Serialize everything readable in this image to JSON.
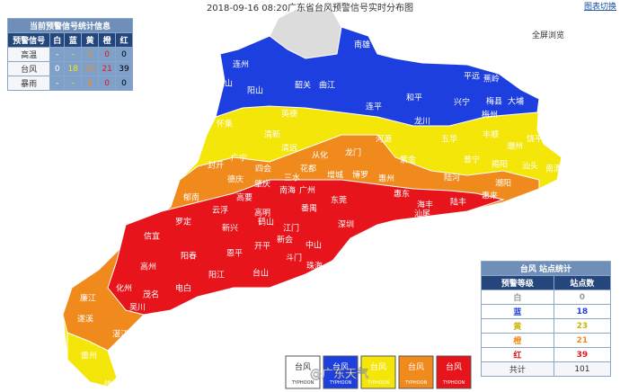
{
  "header": {
    "title": "2018-09-16 08:20广东省台风预警信号实时分布图",
    "switch": "图表切换",
    "fullscreen": "全屏浏览"
  },
  "summary_table": {
    "title": "当前预警信号统计信息",
    "columns": [
      "预警信号",
      "白",
      "蓝",
      "黄",
      "橙",
      "红"
    ],
    "rows": [
      [
        "高温",
        "-",
        "-",
        3,
        0,
        0
      ],
      [
        "台风",
        0,
        18,
        23,
        21,
        39
      ],
      [
        "暴雨",
        "-",
        "-",
        8,
        0,
        0
      ]
    ]
  },
  "station_table": {
    "title": "台风 站点统计",
    "columns": [
      "预警等级",
      "站点数"
    ],
    "rows": [
      [
        "白",
        0
      ],
      [
        "蓝",
        18
      ],
      [
        "黄",
        23
      ],
      [
        "橙",
        21
      ],
      [
        "红",
        39
      ],
      [
        "共计",
        101
      ]
    ]
  },
  "legend": {
    "items": [
      {
        "label": "台风",
        "sub": "TYPHOON"
      },
      {
        "label": "台风",
        "sub": "TYPHOON"
      },
      {
        "label": "台风",
        "sub": "TYPHOON"
      },
      {
        "label": "台风",
        "sub": "TYPHOON"
      },
      {
        "label": "台风",
        "sub": "TYPHOON"
      }
    ],
    "watermark": "@广东天气"
  },
  "map": {
    "labels": [
      "南雄",
      "连州",
      "连山",
      "阳山",
      "韶关",
      "曲江",
      "平远",
      "蕉岭",
      "和平",
      "连平",
      "兴宁",
      "梅县",
      "大埔",
      "梅州",
      "英德",
      "怀集",
      "广宁",
      "清新",
      "清远",
      "从化",
      "龙门",
      "河源",
      "龙川",
      "五华",
      "丰顺",
      "潮州",
      "饶平",
      "揭阳",
      "汕头",
      "南澳",
      "封开",
      "德庆",
      "四会",
      "花都",
      "增城",
      "惠州",
      "紫金",
      "陆河",
      "普宁",
      "潮阳",
      "惠来",
      "郁南",
      "云浮",
      "高要",
      "肇庆",
      "三水",
      "南海",
      "广州",
      "番禺",
      "东莞",
      "博罗",
      "深圳",
      "惠东",
      "海丰",
      "陆丰",
      "汕尾",
      "罗定",
      "新兴",
      "鹤山",
      "高明",
      "江门",
      "新会",
      "中山",
      "斗门",
      "珠海",
      "开平",
      "恩平",
      "台山",
      "阳春",
      "阳江",
      "信宜",
      "高州",
      "化州",
      "茂名",
      "电白",
      "吴川",
      "廉江",
      "遂溪",
      "湛江",
      "雷州",
      "徐闻"
    ]
  }
}
